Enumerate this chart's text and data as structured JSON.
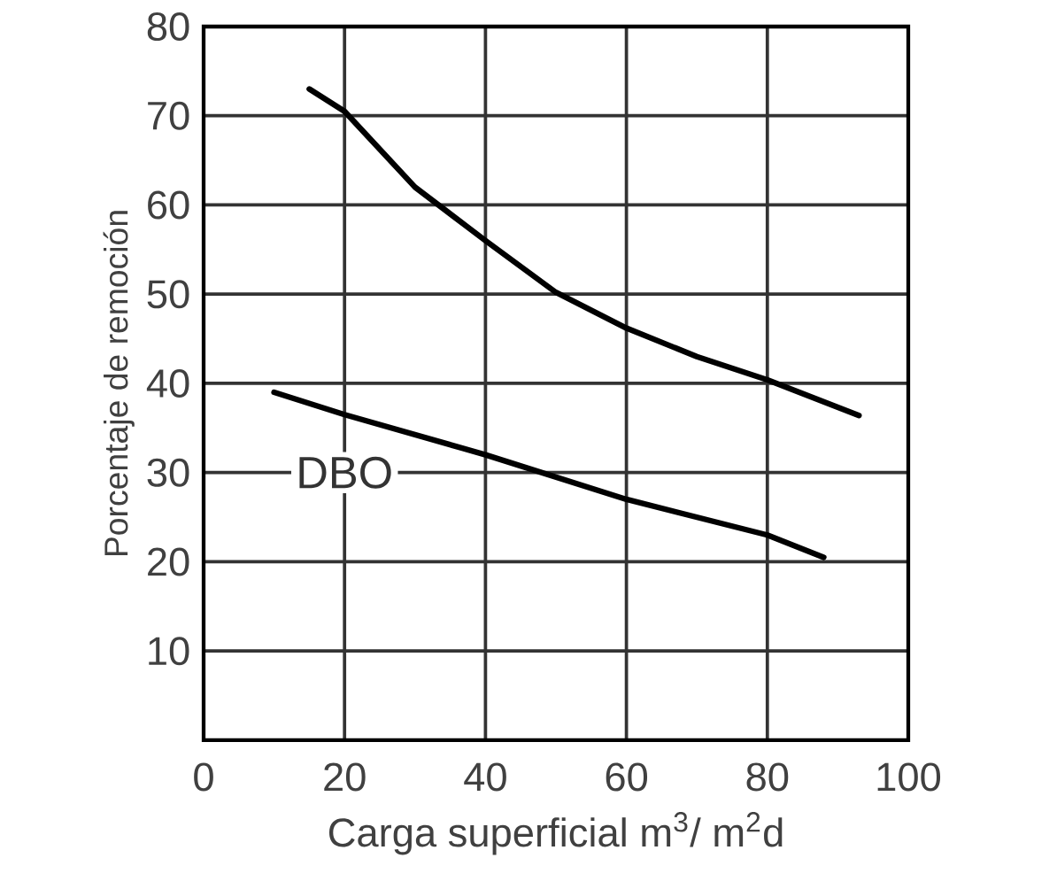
{
  "chart_data": {
    "type": "line",
    "xlabel": "Carga superficial  m$^{3}$/ m$^{2}$d",
    "ylabel": "Porcentaje de remoción",
    "xlim": [
      0,
      100
    ],
    "ylim": [
      0,
      80
    ],
    "xticks": [
      0,
      20,
      40,
      60,
      80,
      100
    ],
    "yticks": [
      10,
      20,
      30,
      40,
      50,
      60,
      70,
      80
    ],
    "grid": true,
    "legend": false,
    "marker": "none",
    "line_style": "solid",
    "series": [
      {
        "color": "#000000",
        "x": [
          15,
          20,
          30,
          40,
          50,
          60,
          70,
          80,
          93
        ],
        "values": [
          73,
          70.5,
          62,
          56,
          50.2,
          46.2,
          43,
          40.4,
          36.4
        ]
      },
      {
        "name": "DBO",
        "color": "#000000",
        "x": [
          10,
          20,
          40,
          60,
          80,
          88
        ],
        "values": [
          39,
          36.5,
          32,
          27,
          23,
          20.5
        ]
      }
    ]
  }
}
